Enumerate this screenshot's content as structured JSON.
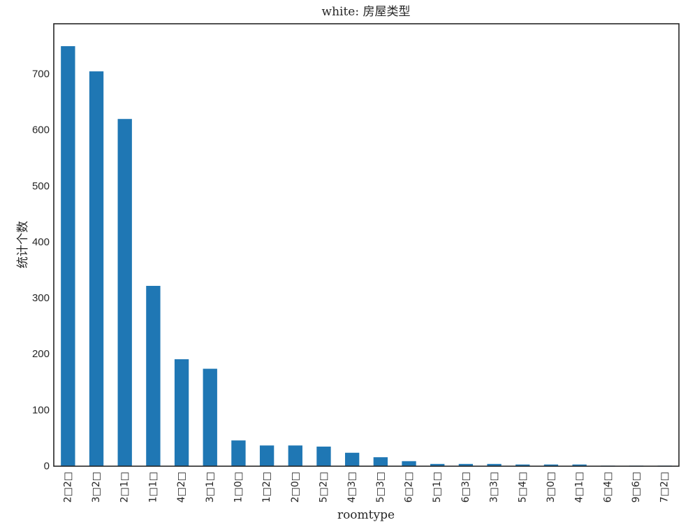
{
  "chart_data": {
    "type": "bar",
    "title": "white: 房屋类型",
    "xlabel": "roomtype",
    "ylabel": "统计个数",
    "categories": [
      "2□2□",
      "3□2□",
      "2□1□",
      "1□1□",
      "4□2□",
      "3□1□",
      "1□0□",
      "1□2□",
      "2□0□",
      "5□2□",
      "4□3□",
      "5□3□",
      "6□2□",
      "5□1□",
      "6□3□",
      "3□3□",
      "5□4□",
      "3□0□",
      "4□1□",
      "6□4□",
      "9□6□",
      "7□2□"
    ],
    "values": [
      750,
      705,
      620,
      322,
      191,
      174,
      46,
      37,
      37,
      35,
      24,
      16,
      9,
      4,
      4,
      4,
      3,
      3,
      3,
      1,
      1,
      1
    ],
    "ylim": [
      0,
      790
    ],
    "yticks": [
      "0",
      "100",
      "200",
      "300",
      "400",
      "500",
      "600",
      "700"
    ],
    "grid": false,
    "bar_color": "#1f77b4",
    "axis_color": "#262626"
  }
}
